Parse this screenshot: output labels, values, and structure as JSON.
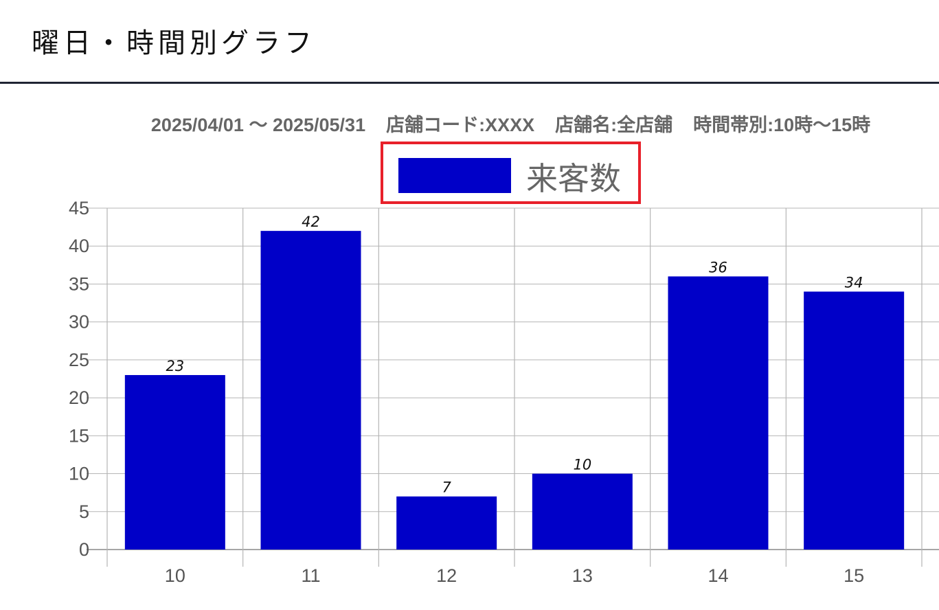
{
  "header": {
    "title": "曜日・時間別グラフ"
  },
  "colors": {
    "bar": "#0000c8",
    "legend_border": "#e8202a",
    "header_rule": "#1f2433",
    "grid": "#b5b5b5"
  },
  "chart_data": {
    "type": "bar",
    "subtitle": "2025/04/01 〜 2025/05/31    店舗コード:XXXX    店舗名:全店舗    時間帯別:10時〜15時",
    "categories": [
      "10",
      "11",
      "12",
      "13",
      "14",
      "15"
    ],
    "series": [
      {
        "name": "来客数",
        "values": [
          23,
          42,
          7,
          10,
          36,
          34
        ]
      }
    ],
    "ylim": [
      0,
      45
    ],
    "yticks": [
      "0",
      "5",
      "10",
      "15",
      "20",
      "25",
      "30",
      "35",
      "40",
      "45"
    ],
    "grid": true,
    "legend": "top-center",
    "data_labels": true
  }
}
